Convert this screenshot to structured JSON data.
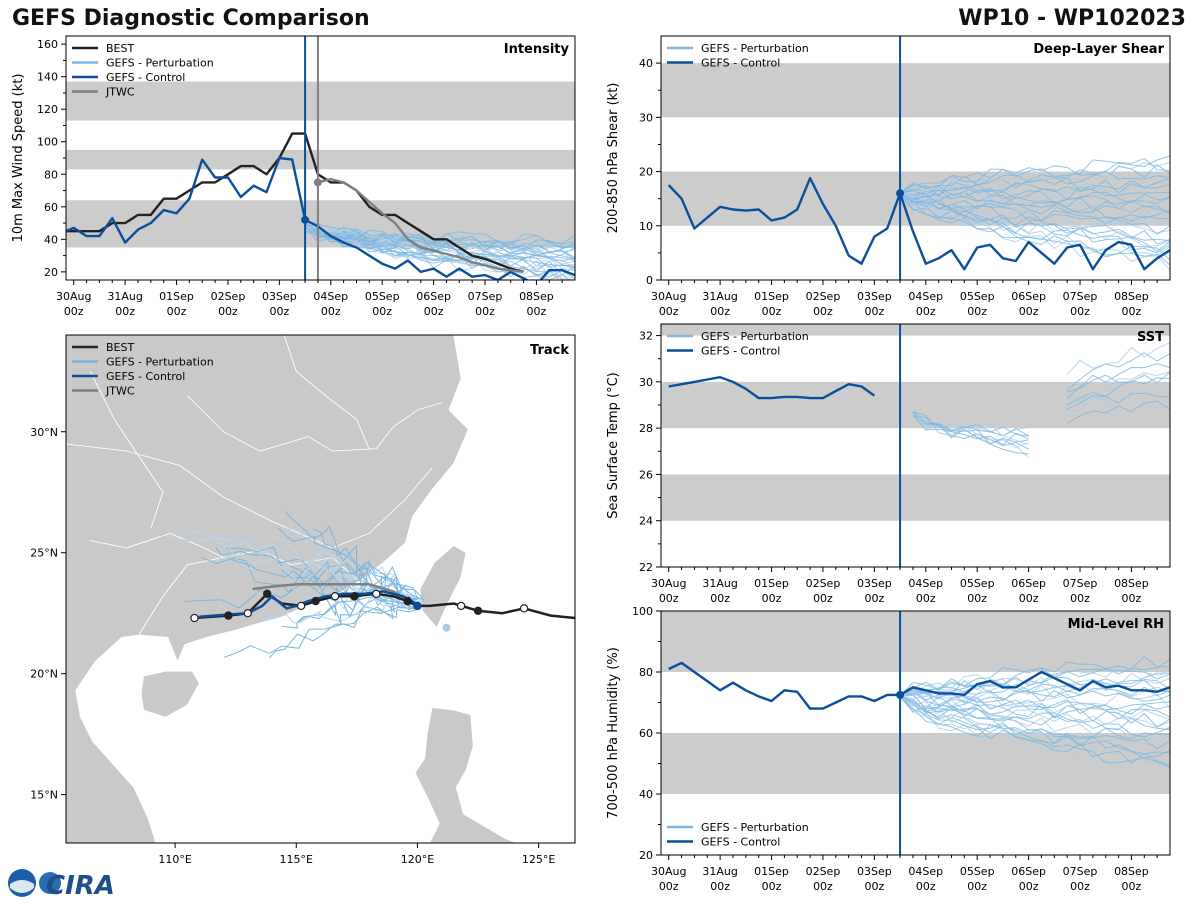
{
  "header": {
    "title_left": "GEFS Diagnostic Comparison",
    "title_right": "WP10 - WP102023"
  },
  "colors": {
    "best": "#222222",
    "perturbation": "#7ab6e0",
    "control": "#0b4f9c",
    "jtwc": "#808080",
    "band": "#cccccc",
    "land": "#c9c9c9",
    "forecast_line": "#0b4f9c",
    "jtwc_line": "#808080"
  },
  "time_axis": {
    "ticks": [
      {
        "day": 0,
        "l1": "30Aug",
        "l2": "00z"
      },
      {
        "day": 1,
        "l1": "31Aug",
        "l2": "00z"
      },
      {
        "day": 2,
        "l1": "01Sep",
        "l2": "00z"
      },
      {
        "day": 3,
        "l1": "02Sep",
        "l2": "00z"
      },
      {
        "day": 4,
        "l1": "03Sep",
        "l2": "00z"
      },
      {
        "day": 5,
        "l1": "04Sep",
        "l2": "00z"
      },
      {
        "day": 6,
        "l1": "05Sep",
        "l2": "00z"
      },
      {
        "day": 7,
        "l1": "06Sep",
        "l2": "00z"
      },
      {
        "day": 8,
        "l1": "07Sep",
        "l2": "00z"
      },
      {
        "day": 9,
        "l1": "08Sep",
        "l2": "00z"
      }
    ],
    "range": [
      -0.15,
      9.75
    ],
    "init_day": 4.5,
    "jtwc_day": 4.75
  },
  "legend_labels": {
    "best": "BEST",
    "perturbation": "GEFS - Perturbation",
    "control": "GEFS - Control",
    "jtwc": "JTWC"
  },
  "chart_data": [
    {
      "id": "intensity",
      "type": "line",
      "title": "Intensity",
      "ylabel": "10m Max Wind Speed (kt)",
      "ylim": [
        15,
        165
      ],
      "yticks": [
        20,
        40,
        60,
        80,
        100,
        120,
        140,
        160
      ],
      "bands": [
        [
          35,
          64
        ],
        [
          83,
          95
        ],
        [
          113,
          137
        ]
      ],
      "legend": [
        "best",
        "perturbation",
        "control",
        "jtwc"
      ],
      "series": [
        {
          "name": "BEST",
          "kind": "best",
          "x": [
            -0.25,
            0,
            0.5,
            0.75,
            1,
            1.25,
            1.5,
            1.75,
            2,
            2.25,
            2.5,
            2.75,
            3,
            3.25,
            3.5,
            3.75,
            4,
            4.25,
            4.5,
            4.75,
            5,
            5.25,
            5.5,
            5.75,
            6,
            6.25,
            6.5,
            6.75,
            7,
            7.25,
            7.5,
            7.75,
            8,
            8.25,
            8.5,
            8.75
          ],
          "y": [
            45,
            45,
            45,
            50,
            50,
            55,
            55,
            65,
            65,
            70,
            75,
            75,
            80,
            85,
            85,
            80,
            90,
            105,
            105,
            80,
            75,
            75,
            70,
            60,
            55,
            55,
            50,
            45,
            40,
            40,
            35,
            30,
            28,
            25,
            22,
            20
          ]
        },
        {
          "name": "GEFS - Control",
          "kind": "control",
          "x": [
            -0.15,
            0,
            0.25,
            0.5,
            0.75,
            1,
            1.25,
            1.5,
            1.75,
            2,
            2.25,
            2.5,
            2.75,
            3,
            3.25,
            3.5,
            3.75,
            4,
            4.25,
            4.5,
            4.75,
            5,
            5.25,
            5.5,
            5.75,
            6,
            6.25,
            6.5,
            6.75,
            7,
            7.25,
            7.5,
            7.75,
            8,
            8.25,
            8.5,
            8.75,
            9,
            9.25,
            9.5,
            9.75
          ],
          "y": [
            45,
            47,
            42,
            42,
            53,
            38,
            46,
            50,
            58,
            56,
            65,
            89,
            78,
            78,
            66,
            73,
            69,
            90,
            89,
            52,
            48,
            42,
            38,
            35,
            30,
            25,
            22,
            27,
            20,
            22,
            17,
            22,
            17,
            18,
            15,
            20,
            16,
            12,
            21,
            21,
            18
          ]
        },
        {
          "name": "JTWC",
          "kind": "jtwc",
          "x": [
            4.75,
            5.0,
            5.25,
            5.5,
            5.75,
            6.0,
            6.25,
            6.5,
            6.75,
            7.0,
            7.25,
            7.5,
            7.75,
            8.0,
            8.25,
            8.5,
            8.75
          ],
          "y": [
            75,
            77,
            75,
            70,
            63,
            56,
            50,
            40,
            35,
            33,
            31,
            29,
            26,
            24,
            22,
            21,
            20
          ]
        }
      ],
      "ensemble": {
        "x0": 4.5,
        "x1": 9.75,
        "start": [
          52,
          44
        ],
        "end": [
          15,
          39
        ],
        "members": 30
      },
      "init_marker": {
        "x": 4.5,
        "y": 52
      }
    },
    {
      "id": "shear",
      "type": "line",
      "title": "Deep-Layer Shear",
      "ylabel": "200-850 hPa Shear (kt)",
      "ylim": [
        0,
        45
      ],
      "yticks": [
        0,
        10,
        20,
        30,
        40
      ],
      "bands": [
        [
          10,
          20
        ],
        [
          30,
          40
        ]
      ],
      "legend": [
        "perturbation",
        "control"
      ],
      "series": [
        {
          "name": "GEFS - Control",
          "kind": "control",
          "x": [
            0,
            0.25,
            0.5,
            0.75,
            1,
            1.25,
            1.5,
            1.75,
            2,
            2.25,
            2.5,
            2.75,
            3,
            3.25,
            3.5,
            3.75,
            4,
            4.25,
            4.5,
            4.75,
            5,
            5.25,
            5.5,
            5.75,
            6,
            6.25,
            6.5,
            6.75,
            7,
            7.25,
            7.5,
            7.75,
            8,
            8.25,
            8.5,
            8.75,
            9,
            9.25,
            9.5,
            9.75
          ],
          "y": [
            17.5,
            15,
            9.5,
            11.5,
            13.5,
            13,
            12.8,
            13,
            11,
            11.5,
            13,
            18.8,
            14,
            10,
            4.5,
            3,
            8,
            9.5,
            16,
            9,
            3,
            4,
            5.5,
            2,
            6,
            6.5,
            4,
            3.5,
            7,
            5,
            3,
            6,
            6.5,
            2,
            5.5,
            7,
            6.5,
            2,
            4,
            5.5
          ]
        }
      ],
      "ensemble": {
        "x0": 4.5,
        "x1": 9.75,
        "start": [
          16,
          16
        ],
        "end": [
          3,
          22
        ],
        "members": 30
      },
      "init_marker": {
        "x": 4.5,
        "y": 16
      }
    },
    {
      "id": "sst",
      "type": "line",
      "title": "SST",
      "ylabel": "Sea Surface Temp (°C)",
      "ylim": [
        22,
        32.5
      ],
      "yticks": [
        22,
        24,
        26,
        28,
        30,
        32
      ],
      "bands": [
        [
          24,
          26
        ],
        [
          28,
          30
        ],
        [
          32,
          32.5
        ]
      ],
      "legend": [
        "perturbation",
        "control"
      ],
      "series": [
        {
          "name": "GEFS - Control",
          "kind": "control",
          "x": [
            0,
            0.25,
            0.5,
            0.75,
            1,
            1.25,
            1.5,
            1.75,
            2,
            2.25,
            2.5,
            2.75,
            3,
            3.25,
            3.5,
            3.75,
            4
          ],
          "y": [
            29.8,
            29.9,
            30.0,
            30.1,
            30.2,
            30.0,
            29.7,
            29.3,
            29.3,
            29.35,
            29.35,
            29.3,
            29.3,
            29.6,
            29.9,
            29.8,
            29.4
          ]
        }
      ],
      "ensemble": {
        "x0": 4.75,
        "x1": 7.0,
        "start": [
          28.8,
          28.5
        ],
        "end": [
          27.0,
          27.8
        ],
        "members": 10
      },
      "ensemble2": {
        "x0": 7.75,
        "x1": 9.75,
        "start": [
          28.0,
          30.5
        ],
        "end": [
          28.8,
          31.5
        ],
        "members": 10
      },
      "init_marker": null
    },
    {
      "id": "rh",
      "type": "line",
      "title": "Mid-Level RH",
      "ylabel": "700-500 hPa Humidity (%)",
      "ylim": [
        20,
        100
      ],
      "yticks": [
        20,
        40,
        60,
        80,
        100
      ],
      "bands": [
        [
          40,
          60
        ],
        [
          80,
          100
        ]
      ],
      "legend": [
        "perturbation",
        "control"
      ],
      "series": [
        {
          "name": "GEFS - Control",
          "kind": "control",
          "x": [
            0,
            0.25,
            0.5,
            0.75,
            1,
            1.25,
            1.5,
            1.75,
            2,
            2.25,
            2.5,
            2.75,
            3,
            3.25,
            3.5,
            3.75,
            4,
            4.25,
            4.5,
            4.75,
            5,
            5.25,
            5.5,
            5.75,
            6,
            6.25,
            6.5,
            6.75,
            7,
            7.25,
            7.5,
            7.75,
            8,
            8.25,
            8.5,
            8.75,
            9,
            9.25,
            9.5,
            9.75
          ],
          "y": [
            81,
            83,
            80,
            77,
            74,
            76.5,
            74,
            72,
            70.5,
            74,
            73.5,
            68,
            68,
            70,
            72,
            72,
            70.5,
            72.5,
            72.5,
            75,
            74,
            73,
            73,
            72.5,
            76,
            77,
            75,
            75,
            77.5,
            80,
            78,
            76,
            74,
            77,
            75,
            75.5,
            74,
            74,
            73.5,
            75
          ]
        }
      ],
      "ensemble": {
        "x0": 4.5,
        "x1": 9.75,
        "start": [
          72,
          72
        ],
        "end": [
          48,
          84
        ],
        "members": 30
      },
      "init_marker": {
        "x": 4.5,
        "y": 72.5
      }
    }
  ],
  "track": {
    "title": "Track",
    "lon_range": [
      105.5,
      126.5
    ],
    "lat_range": [
      13,
      34
    ],
    "lon_ticks": [
      {
        "v": 110,
        "label": "110°E"
      },
      {
        "v": 115,
        "label": "115°E"
      },
      {
        "v": 120,
        "label": "120°E"
      },
      {
        "v": 125,
        "label": "125°E"
      }
    ],
    "lat_ticks": [
      {
        "v": 15,
        "label": "15°N"
      },
      {
        "v": 20,
        "label": "20°N"
      },
      {
        "v": 25,
        "label": "25°N"
      },
      {
        "v": 30,
        "label": "30°N"
      }
    ],
    "best": {
      "lon": [
        126.5,
        125.5,
        124.4,
        123.5,
        122.5,
        121.5,
        120.5,
        120.0,
        119.6,
        119.0,
        118.3,
        117.4,
        116.6,
        115.8,
        115.2,
        114.4,
        113.8,
        113.0,
        112.2,
        111.5,
        110.8
      ],
      "lat": [
        22.3,
        22.4,
        22.7,
        22.5,
        22.6,
        22.9,
        22.8,
        22.8,
        23.0,
        23.2,
        23.3,
        23.2,
        23.2,
        23.0,
        22.8,
        22.9,
        23.3,
        22.5,
        22.4,
        22.35,
        22.3
      ]
    },
    "best_markers": [
      {
        "lon": 124.4,
        "lat": 22.7,
        "filled": false
      },
      {
        "lon": 122.5,
        "lat": 22.6,
        "filled": true
      },
      {
        "lon": 121.8,
        "lat": 22.8,
        "filled": false
      },
      {
        "lon": 120.0,
        "lat": 22.8,
        "filled": true
      },
      {
        "lon": 119.6,
        "lat": 23.0,
        "filled": true
      },
      {
        "lon": 118.3,
        "lat": 23.3,
        "filled": false
      },
      {
        "lon": 117.4,
        "lat": 23.2,
        "filled": true
      },
      {
        "lon": 116.6,
        "lat": 23.2,
        "filled": false
      },
      {
        "lon": 115.8,
        "lat": 23.0,
        "filled": true
      },
      {
        "lon": 115.2,
        "lat": 22.8,
        "filled": false
      },
      {
        "lon": 113.8,
        "lat": 23.3,
        "filled": true
      },
      {
        "lon": 113.0,
        "lat": 22.5,
        "filled": false
      },
      {
        "lon": 112.2,
        "lat": 22.4,
        "filled": true
      },
      {
        "lon": 110.8,
        "lat": 22.3,
        "filled": false
      }
    ],
    "control": {
      "lon": [
        120.1,
        119.4,
        118.6,
        117.8,
        117.0,
        116.2,
        115.5,
        115.0,
        114.6,
        114.0,
        113.6,
        113.0,
        112.3,
        111.6,
        111.0
      ],
      "lat": [
        22.8,
        23.2,
        23.4,
        23.3,
        23.3,
        23.2,
        23.0,
        22.8,
        22.7,
        23.2,
        22.8,
        22.5,
        22.45,
        22.4,
        22.35
      ]
    },
    "jtwc": {
      "lon": [
        120.0,
        119.0,
        118.0,
        117.0,
        116.0,
        115.0,
        114.0,
        113.2
      ],
      "lat": [
        22.8,
        23.4,
        23.7,
        23.7,
        23.7,
        23.7,
        23.6,
        23.5
      ]
    },
    "gefs_start": {
      "lon": 120.0,
      "lat": 22.8
    },
    "ensemble_members": 24
  },
  "logo": {
    "text": "CIRA"
  }
}
